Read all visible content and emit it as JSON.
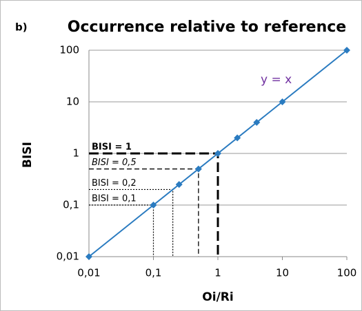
{
  "chart_data": {
    "type": "line",
    "panel_label": "b)",
    "title": "Occurrence relative to reference",
    "xlabel": "Oi/Ri",
    "ylabel": "BISI",
    "annotation": "y = x",
    "xscale": "log",
    "yscale": "log",
    "grid": true,
    "xlim": [
      0.01,
      100
    ],
    "ylim": [
      0.01,
      100
    ],
    "xticks": [
      {
        "value": 0.01,
        "label": "0,01"
      },
      {
        "value": 0.1,
        "label": "0,1"
      },
      1,
      10,
      100
    ],
    "yticks": [
      {
        "value": 0.01,
        "label": "0,01"
      },
      {
        "value": 0.1,
        "label": "0,1"
      },
      1,
      10,
      100
    ],
    "series": [
      {
        "color": "#2a7bc0",
        "x": [
          0.01,
          0.1,
          0.25,
          0.5,
          1,
          2,
          4,
          10,
          100
        ],
        "values": [
          0.01,
          0.1,
          0.25,
          0.5,
          1,
          2,
          4,
          10,
          100
        ]
      }
    ],
    "guides": [
      {
        "label": "BISI = 1",
        "value": 1,
        "style": "long-dash"
      },
      {
        "label": "BISI = 0,5",
        "value": 0.5,
        "style": "dash"
      },
      {
        "label": "BISI = 0,2",
        "value": 0.2,
        "style": "dot"
      },
      {
        "label": "BISI = 0,1",
        "value": 0.1,
        "style": "dot"
      }
    ]
  }
}
